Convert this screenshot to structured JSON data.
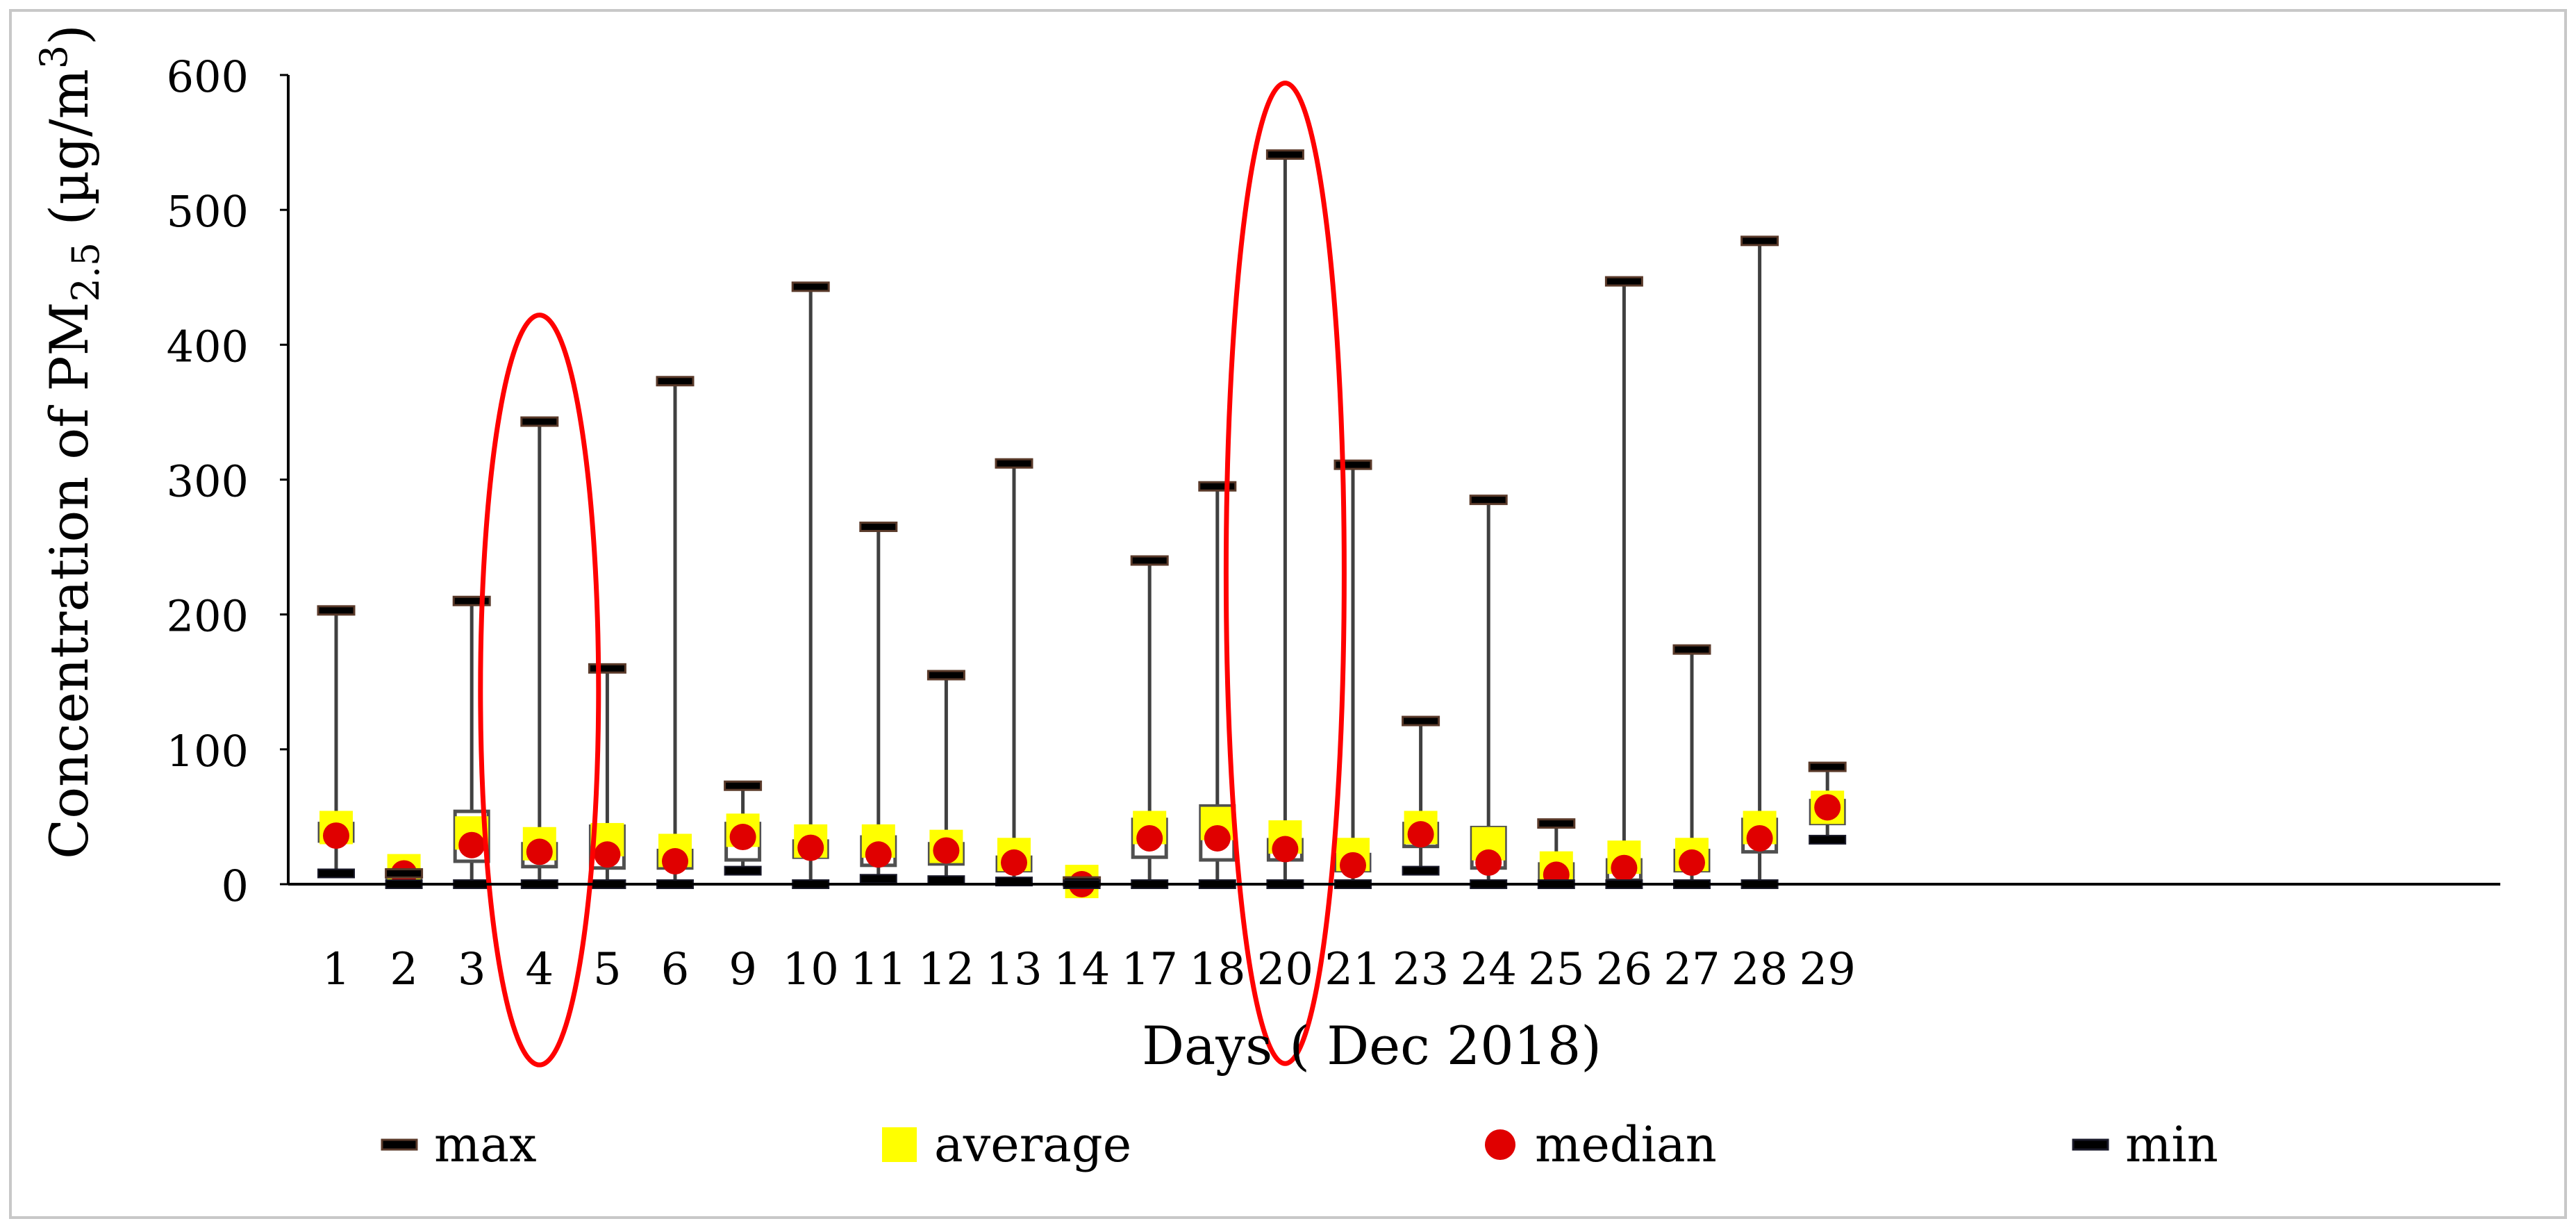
{
  "chart_data": {
    "type": "box",
    "title": "",
    "xlabel": "Days ( Dec 2018)",
    "ylabel": {
      "prefix": "Concentration of PM",
      "subscript": "2.5",
      "unit_open": " (µg/m",
      "superscript": "3",
      "unit_close": ")"
    },
    "ylim": [
      0,
      600
    ],
    "yticks": [
      0,
      100,
      200,
      300,
      400,
      500,
      600
    ],
    "grid": false,
    "legend_position": "bottom",
    "legend": [
      {
        "key": "max",
        "label": "max",
        "marker": "dash",
        "color": "#5a3a2a"
      },
      {
        "key": "average",
        "label": "average",
        "marker": "square",
        "color": "#ffff00"
      },
      {
        "key": "median",
        "label": "median",
        "marker": "circle",
        "color": "#e00000"
      },
      {
        "key": "min",
        "label": "min",
        "marker": "dash",
        "color": "#1a1a2a"
      }
    ],
    "categories": [
      "1",
      "2",
      "3",
      "4",
      "5",
      "6",
      "9",
      "10",
      "11",
      "12",
      "13",
      "14",
      "17",
      "18",
      "20",
      "21",
      "23",
      "24",
      "25",
      "26",
      "27",
      "28",
      "29"
    ],
    "series": [
      {
        "name": "max",
        "values": [
          203,
          8,
          210,
          343,
          160,
          373,
          73,
          443,
          265,
          155,
          312,
          2,
          240,
          295,
          541,
          311,
          121,
          285,
          45,
          447,
          174,
          477,
          87
        ]
      },
      {
        "name": "q3",
        "values": [
          45,
          8,
          54,
          30,
          43,
          25,
          45,
          32,
          35,
          30,
          20,
          2,
          48,
          58,
          33,
          22,
          45,
          42,
          15,
          18,
          25,
          48,
          62
        ]
      },
      {
        "name": "average",
        "values": [
          42,
          10,
          38,
          30,
          33,
          25,
          40,
          32,
          32,
          28,
          22,
          2,
          42,
          45,
          35,
          22,
          42,
          30,
          12,
          20,
          22,
          42,
          57
        ]
      },
      {
        "name": "median",
        "values": [
          36,
          8,
          29,
          24,
          22,
          17,
          35,
          27,
          22,
          25,
          16,
          0,
          34,
          34,
          26,
          14,
          37,
          16,
          7,
          12,
          16,
          34,
          57
        ]
      },
      {
        "name": "q1",
        "values": [
          32,
          5,
          17,
          13,
          12,
          12,
          18,
          20,
          14,
          15,
          10,
          0,
          20,
          18,
          18,
          10,
          28,
          12,
          2,
          3,
          10,
          24,
          45
        ]
      },
      {
        "name": "min",
        "values": [
          8,
          0,
          0,
          0,
          0,
          0,
          10,
          0,
          4,
          3,
          2,
          0,
          0,
          0,
          0,
          0,
          10,
          0,
          0,
          0,
          0,
          0,
          33
        ]
      }
    ],
    "annotations": [
      {
        "type": "ellipse",
        "color": "#ff0000",
        "category": "4",
        "y_range": [
          -134,
          422
        ]
      },
      {
        "type": "ellipse",
        "color": "#ff0000",
        "category": "20",
        "y_range": [
          -133,
          594
        ]
      }
    ]
  }
}
